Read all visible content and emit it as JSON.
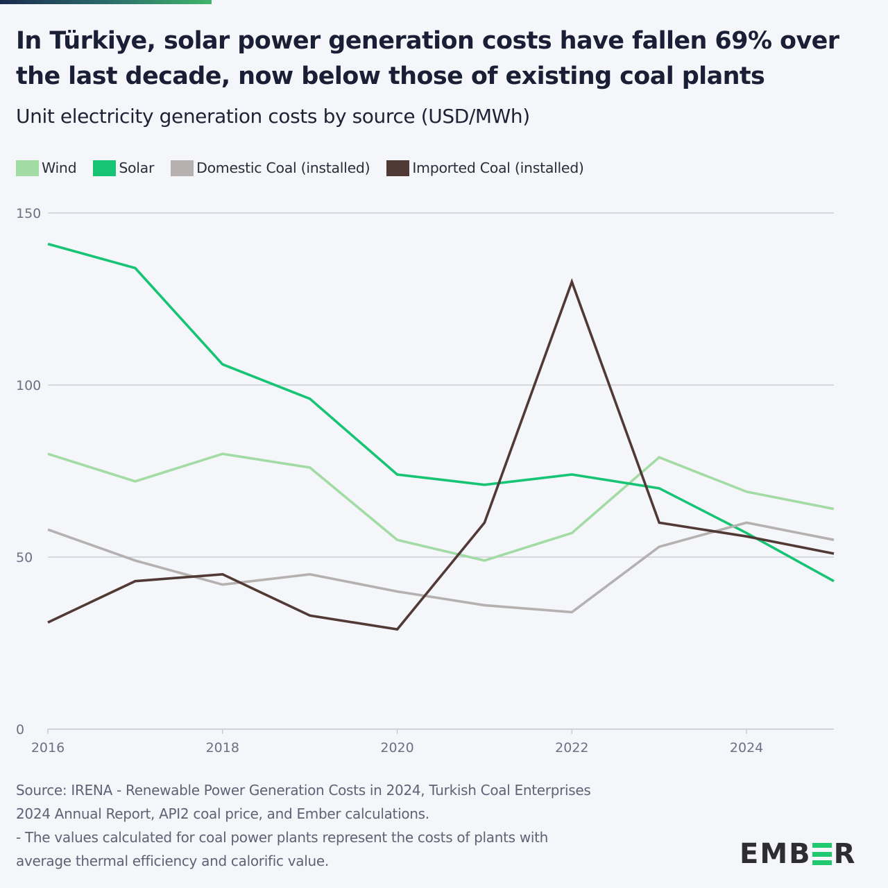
{
  "header": {
    "title_line1": "In Türkiye, solar power generation costs have fallen 69% over",
    "title_line2": "the last decade, now below those of existing coal plants",
    "subtitle": "Unit electricity generation costs by source (USD/MWh)"
  },
  "legend": [
    {
      "label": "Wind",
      "color": "#a2dba4"
    },
    {
      "label": "Solar",
      "color": "#17c474"
    },
    {
      "label": "Domestic Coal (installed)",
      "color": "#b6b1b0"
    },
    {
      "label": "Imported Coal (installed)",
      "color": "#513a36"
    }
  ],
  "chart_data": {
    "type": "line",
    "title": "In Türkiye, solar power generation costs have fallen 69% over the last decade, now below those of existing coal plants",
    "subtitle": "Unit electricity generation costs by source (USD/MWh)",
    "xlabel": "",
    "ylabel": "USD/MWh",
    "x": [
      2016,
      2017,
      2018,
      2019,
      2020,
      2021,
      2022,
      2023,
      2024,
      2025
    ],
    "xticks": [
      "2016",
      "2018",
      "2020",
      "2022",
      "2024"
    ],
    "xtick_values": [
      2016,
      2018,
      2020,
      2022,
      2024
    ],
    "yticks": [
      "0",
      "50",
      "100",
      "150"
    ],
    "ytick_values": [
      0,
      50,
      100,
      150
    ],
    "xlim": [
      2016,
      2025
    ],
    "ylim": [
      0,
      150
    ],
    "grid": "horizontal",
    "legend_position": "top-left",
    "series": [
      {
        "name": "Wind",
        "color": "#a2dba4",
        "values": [
          80,
          72,
          80,
          76,
          55,
          49,
          57,
          79,
          69,
          64
        ]
      },
      {
        "name": "Solar",
        "color": "#17c474",
        "values": [
          141,
          134,
          106,
          96,
          74,
          71,
          74,
          70,
          57,
          43
        ]
      },
      {
        "name": "Domestic Coal (installed)",
        "color": "#b6b1b0",
        "values": [
          58,
          49,
          42,
          45,
          40,
          36,
          34,
          53,
          60,
          55
        ]
      },
      {
        "name": "Imported Coal (installed)",
        "color": "#513a36",
        "values": [
          31,
          43,
          45,
          33,
          29,
          60,
          130,
          60,
          56,
          51
        ]
      }
    ]
  },
  "footer": {
    "source_line1": "Source: IRENA - Renewable Power Generation Costs in 2024, Turkish Coal Enterprises",
    "source_line2": "2024 Annual Report, API2 coal price, and Ember calculations.",
    "note_line1": "- The values calculated for coal power plants represent the costs of plants with",
    "note_line2": "average thermal efficiency and calorific value.",
    "logo_prefix": "EMB",
    "logo_suffix": "R",
    "logo_accent_color": "#1fc96f"
  }
}
